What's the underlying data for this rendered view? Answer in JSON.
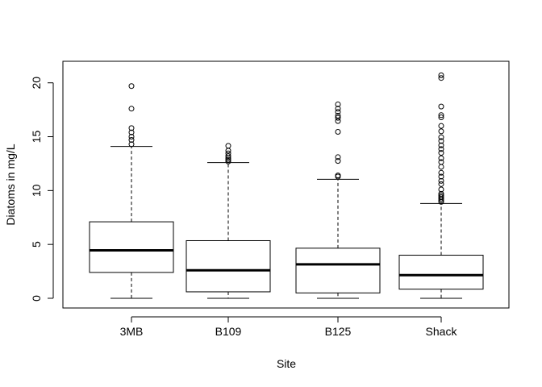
{
  "chart_data": {
    "type": "boxplot",
    "xlabel": "Site",
    "ylabel": "Diatoms in mg/L",
    "ylim": [
      -0.9,
      22.0
    ],
    "yticks": [
      0,
      5,
      10,
      15,
      20
    ],
    "grid": false,
    "legend": "none",
    "categories": [
      "3MB",
      "B109",
      "B125",
      "Shack"
    ],
    "boxes": [
      {
        "name": "3MB",
        "whisker_low": 0.0,
        "q1": 2.4,
        "median": 4.45,
        "q3": 7.1,
        "whisker_high": 14.1,
        "outliers": [
          14.3,
          14.7,
          15.0,
          15.4,
          15.8,
          17.6,
          19.7
        ]
      },
      {
        "name": "B109",
        "whisker_low": 0.0,
        "q1": 0.6,
        "median": 2.6,
        "q3": 5.35,
        "whisker_high": 12.6,
        "outliers": [
          12.7,
          12.85,
          13.0,
          13.2,
          13.45,
          13.7,
          14.15
        ]
      },
      {
        "name": "B125",
        "whisker_low": 0.0,
        "q1": 0.5,
        "median": 3.15,
        "q3": 4.65,
        "whisker_high": 11.05,
        "outliers": [
          11.3,
          11.4,
          12.75,
          13.1,
          15.45,
          16.45,
          16.75,
          16.95,
          17.3,
          17.6,
          18.0
        ]
      },
      {
        "name": "Shack",
        "whisker_low": 0.0,
        "q1": 0.85,
        "median": 2.15,
        "q3": 4.0,
        "whisker_high": 8.8,
        "outliers": [
          8.95,
          9.1,
          9.25,
          9.4,
          9.55,
          9.7,
          10.1,
          10.6,
          10.9,
          11.3,
          11.65,
          12.2,
          12.65,
          13.0,
          13.5,
          13.85,
          14.2,
          14.6,
          14.95,
          15.5,
          16.0,
          16.8,
          17.0,
          17.8,
          20.45,
          20.7
        ]
      }
    ]
  }
}
